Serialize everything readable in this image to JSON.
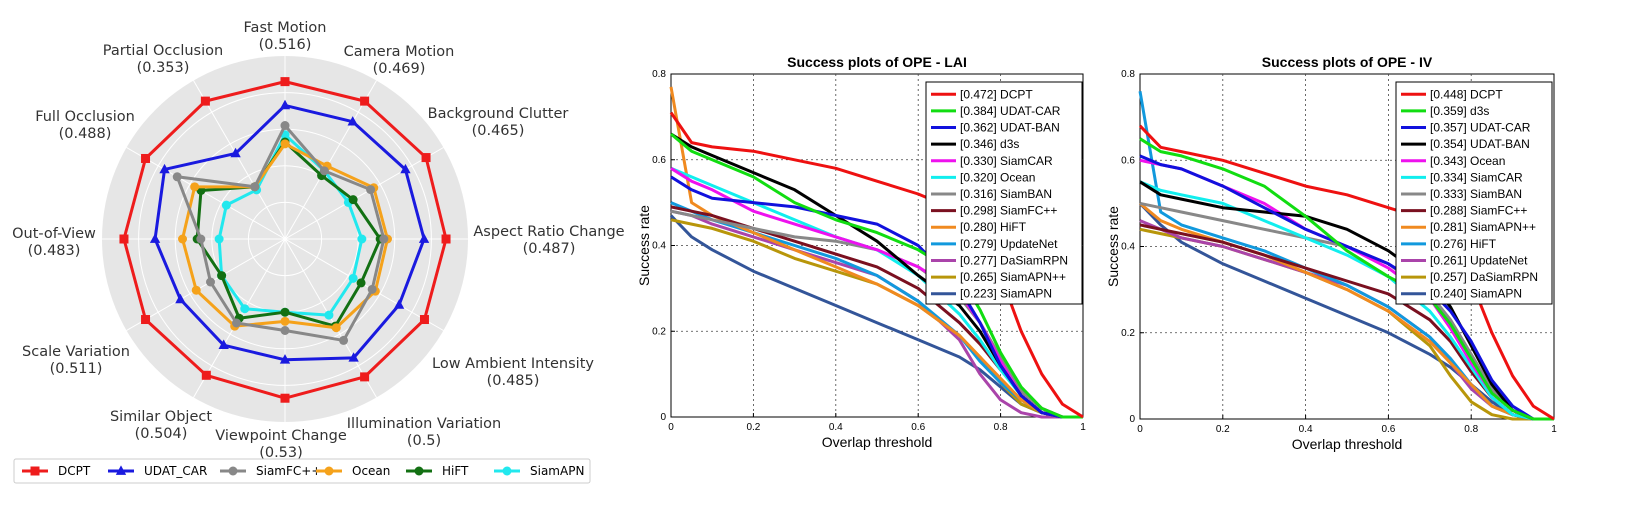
{
  "chart_data": [
    {
      "type": "radar",
      "attributes": [
        {
          "name": "Fast Motion",
          "value": "(0.516)"
        },
        {
          "name": "Camera Motion",
          "value": "(0.469)"
        },
        {
          "name": "Background Clutter",
          "value": "(0.465)"
        },
        {
          "name": "Aspect Ratio Change",
          "value": "(0.487)"
        },
        {
          "name": "Low Ambient Intensity",
          "value": "(0.485)"
        },
        {
          "name": "Illumination Variation",
          "value": "(0.5)"
        },
        {
          "name": "Viewpoint Change",
          "value": "(0.53)"
        },
        {
          "name": "Similar Object",
          "value": "(0.504)"
        },
        {
          "name": "Scale Variation",
          "value": "(0.511)"
        },
        {
          "name": "Out-of-View",
          "value": "(0.483)"
        },
        {
          "name": "Full Occlusion",
          "value": "(0.488)"
        },
        {
          "name": "Partial Occlusion",
          "value": "(0.353)"
        }
      ],
      "series": [
        {
          "name": "DCPT",
          "color": "#ee1c1c",
          "marker": "square",
          "values": [
            0.86,
            0.87,
            0.89,
            0.88,
            0.88,
            0.87,
            0.87,
            0.86,
            0.88,
            0.88,
            0.88,
            0.87
          ]
        },
        {
          "name": "UDAT_CAR",
          "color": "#1a1adf",
          "marker": "triangle",
          "values": [
            0.73,
            0.74,
            0.76,
            0.76,
            0.72,
            0.75,
            0.66,
            0.67,
            0.66,
            0.71,
            0.76,
            0.54
          ]
        },
        {
          "name": "SiamFC++",
          "color": "#888888",
          "marker": "circle",
          "values": [
            0.62,
            0.43,
            0.54,
            0.54,
            0.55,
            0.64,
            0.5,
            0.53,
            0.47,
            0.46,
            0.68,
            0.33
          ]
        },
        {
          "name": "Ocean",
          "color": "#f5a21b",
          "marker": "circle",
          "values": [
            0.52,
            0.46,
            0.56,
            0.56,
            0.57,
            0.56,
            0.45,
            0.55,
            0.56,
            0.56,
            0.57,
            0.33
          ]
        },
        {
          "name": "HiFT",
          "color": "#137013",
          "marker": "circle",
          "values": [
            0.53,
            0.4,
            0.43,
            0.52,
            0.48,
            0.55,
            0.4,
            0.5,
            0.4,
            0.48,
            0.53,
            0.33
          ]
        },
        {
          "name": "SiamAPN",
          "color": "#22e8ee",
          "marker": "circle",
          "values": [
            0.57,
            0.43,
            0.4,
            0.42,
            0.43,
            0.48,
            0.4,
            0.44,
            0.4,
            0.36,
            0.37,
            0.31
          ]
        }
      ]
    },
    {
      "type": "line",
      "title": "Success plots of OPE - LAI",
      "xlabel": "Overlap threshold",
      "ylabel": "Success rate",
      "xlim": [
        0,
        1
      ],
      "ylim": [
        0,
        0.8
      ],
      "xticks": [
        "0",
        "0.2",
        "0.4",
        "0.6",
        "0.8",
        "1"
      ],
      "yticks": [
        "0",
        "0.2",
        "0.4",
        "0.6",
        "0.8"
      ],
      "x": [
        0,
        0.05,
        0.1,
        0.2,
        0.3,
        0.4,
        0.5,
        0.6,
        0.7,
        0.75,
        0.8,
        0.85,
        0.9,
        0.95,
        1
      ],
      "series": [
        {
          "name": "DCPT",
          "legend": "[0.472] DCPT",
          "color": "#ee1111",
          "values": [
            0.71,
            0.64,
            0.63,
            0.62,
            0.6,
            0.58,
            0.55,
            0.52,
            0.48,
            0.43,
            0.33,
            0.2,
            0.1,
            0.03,
            0.0
          ]
        },
        {
          "name": "UDAT-CAR",
          "legend": "[0.384] UDAT-CAR",
          "color": "#11dd11",
          "values": [
            0.66,
            0.62,
            0.6,
            0.56,
            0.5,
            0.46,
            0.43,
            0.39,
            0.33,
            0.25,
            0.15,
            0.07,
            0.02,
            0.0,
            0.0
          ]
        },
        {
          "name": "UDAT-BAN",
          "legend": "[0.362] UDAT-BAN",
          "color": "#1111dd",
          "values": [
            0.56,
            0.53,
            0.51,
            0.5,
            0.49,
            0.47,
            0.45,
            0.4,
            0.3,
            0.22,
            0.12,
            0.05,
            0.01,
            0.0,
            0.0
          ]
        },
        {
          "name": "d3s",
          "legend": "[0.346] d3s",
          "color": "#000000",
          "values": [
            0.66,
            0.63,
            0.61,
            0.57,
            0.53,
            0.47,
            0.41,
            0.33,
            0.26,
            0.2,
            0.12,
            0.05,
            0.01,
            0.0,
            0.0
          ]
        },
        {
          "name": "SiamCAR",
          "legend": "[0.330] SiamCAR",
          "color": "#ee11ee",
          "values": [
            0.58,
            0.55,
            0.53,
            0.48,
            0.45,
            0.42,
            0.39,
            0.35,
            0.29,
            0.22,
            0.13,
            0.05,
            0.01,
            0.0,
            0.0
          ]
        },
        {
          "name": "Ocean",
          "legend": "[0.320] Ocean",
          "color": "#11eeee",
          "values": [
            0.58,
            0.56,
            0.54,
            0.5,
            0.46,
            0.42,
            0.39,
            0.33,
            0.24,
            0.18,
            0.11,
            0.05,
            0.01,
            0.0,
            0.0
          ]
        },
        {
          "name": "SiamBAN",
          "legend": "[0.316] SiamBAN",
          "color": "#888888",
          "values": [
            0.48,
            0.47,
            0.46,
            0.44,
            0.42,
            0.41,
            0.39,
            0.35,
            0.28,
            0.22,
            0.14,
            0.06,
            0.02,
            0.0,
            0.0
          ]
        },
        {
          "name": "SiamFC++",
          "legend": "[0.298] SiamFC++",
          "color": "#7a1020",
          "values": [
            0.49,
            0.48,
            0.47,
            0.44,
            0.41,
            0.38,
            0.35,
            0.3,
            0.22,
            0.17,
            0.11,
            0.06,
            0.02,
            0.0,
            0.0
          ]
        },
        {
          "name": "HiFT",
          "legend": "[0.280] HiFT",
          "color": "#f08a20",
          "values": [
            0.77,
            0.5,
            0.47,
            0.43,
            0.39,
            0.35,
            0.31,
            0.26,
            0.19,
            0.14,
            0.09,
            0.04,
            0.01,
            0.0,
            0.0
          ]
        },
        {
          "name": "UpdateNet",
          "legend": "[0.279] UpdateNet",
          "color": "#1199dd",
          "values": [
            0.5,
            0.48,
            0.46,
            0.43,
            0.4,
            0.37,
            0.33,
            0.27,
            0.19,
            0.13,
            0.08,
            0.04,
            0.01,
            0.0,
            0.0
          ]
        },
        {
          "name": "DaSiamRPN",
          "legend": "[0.277] DaSiamRPN",
          "color": "#aa44aa",
          "values": [
            0.48,
            0.47,
            0.45,
            0.42,
            0.39,
            0.36,
            0.33,
            0.27,
            0.18,
            0.1,
            0.04,
            0.01,
            0.0,
            0.0,
            0.0
          ]
        },
        {
          "name": "SiamAPN++",
          "legend": "[0.265] SiamAPN++",
          "color": "#b8960a",
          "values": [
            0.46,
            0.45,
            0.44,
            0.41,
            0.37,
            0.34,
            0.31,
            0.26,
            0.19,
            0.14,
            0.08,
            0.03,
            0.01,
            0.0,
            0.0
          ]
        },
        {
          "name": "SiamAPN",
          "legend": "[0.223] SiamAPN",
          "color": "#335599",
          "values": [
            0.47,
            0.42,
            0.39,
            0.34,
            0.3,
            0.26,
            0.22,
            0.18,
            0.14,
            0.11,
            0.07,
            0.03,
            0.01,
            0.0,
            0.0
          ]
        }
      ]
    },
    {
      "type": "line",
      "title": "Success plots of OPE - IV",
      "xlabel": "Overlap threshold",
      "ylabel": "Success rate",
      "xlim": [
        0,
        1
      ],
      "ylim": [
        0,
        0.8
      ],
      "xticks": [
        "0",
        "0.2",
        "0.4",
        "0.6",
        "0.8",
        "1"
      ],
      "yticks": [
        "0",
        "0.2",
        "0.4",
        "0.6",
        "0.8"
      ],
      "x": [
        0,
        0.05,
        0.1,
        0.2,
        0.3,
        0.4,
        0.5,
        0.6,
        0.7,
        0.75,
        0.8,
        0.85,
        0.9,
        0.95,
        1
      ],
      "series": [
        {
          "name": "DCPT",
          "legend": "[0.448] DCPT",
          "color": "#ee1111",
          "values": [
            0.68,
            0.63,
            0.62,
            0.6,
            0.57,
            0.54,
            0.52,
            0.49,
            0.46,
            0.42,
            0.32,
            0.2,
            0.1,
            0.03,
            0.0
          ]
        },
        {
          "name": "d3s",
          "legend": "[0.359] d3s",
          "color": "#11dd11",
          "values": [
            0.65,
            0.62,
            0.61,
            0.58,
            0.54,
            0.47,
            0.39,
            0.33,
            0.28,
            0.22,
            0.14,
            0.06,
            0.02,
            0.0,
            0.0
          ]
        },
        {
          "name": "UDAT-CAR",
          "legend": "[0.357] UDAT-CAR",
          "color": "#1111dd",
          "values": [
            0.61,
            0.59,
            0.58,
            0.54,
            0.49,
            0.44,
            0.4,
            0.36,
            0.3,
            0.25,
            0.18,
            0.09,
            0.03,
            0.0,
            0.0
          ]
        },
        {
          "name": "UDAT-BAN",
          "legend": "[0.354] UDAT-BAN",
          "color": "#000000",
          "values": [
            0.55,
            0.52,
            0.51,
            0.49,
            0.48,
            0.47,
            0.44,
            0.39,
            0.32,
            0.26,
            0.17,
            0.08,
            0.02,
            0.0,
            0.0
          ]
        },
        {
          "name": "Ocean",
          "legend": "[0.343] Ocean",
          "color": "#ee11ee",
          "values": [
            0.6,
            0.59,
            0.58,
            0.54,
            0.5,
            0.44,
            0.4,
            0.35,
            0.28,
            0.21,
            0.13,
            0.06,
            0.02,
            0.0,
            0.0
          ]
        },
        {
          "name": "SiamCAR",
          "legend": "[0.334] SiamCAR",
          "color": "#11eeee",
          "values": [
            0.55,
            0.53,
            0.52,
            0.5,
            0.46,
            0.42,
            0.38,
            0.33,
            0.25,
            0.19,
            0.12,
            0.05,
            0.01,
            0.0,
            0.0
          ]
        },
        {
          "name": "SiamBAN",
          "legend": "[0.333] SiamBAN",
          "color": "#888888",
          "values": [
            0.5,
            0.49,
            0.48,
            0.46,
            0.44,
            0.42,
            0.4,
            0.36,
            0.29,
            0.23,
            0.15,
            0.07,
            0.02,
            0.0,
            0.0
          ]
        },
        {
          "name": "SiamFC++",
          "legend": "[0.288] SiamFC++",
          "color": "#7a1020",
          "values": [
            0.45,
            0.44,
            0.43,
            0.41,
            0.38,
            0.35,
            0.32,
            0.29,
            0.23,
            0.18,
            0.11,
            0.05,
            0.01,
            0.0,
            0.0
          ]
        },
        {
          "name": "SiamAPN++",
          "legend": "[0.281] SiamAPN++",
          "color": "#f08a20",
          "values": [
            0.5,
            0.46,
            0.44,
            0.41,
            0.38,
            0.34,
            0.3,
            0.25,
            0.18,
            0.13,
            0.08,
            0.03,
            0.01,
            0.0,
            0.0
          ]
        },
        {
          "name": "HiFT",
          "legend": "[0.276] HiFT",
          "color": "#1199dd",
          "values": [
            0.76,
            0.48,
            0.45,
            0.42,
            0.39,
            0.35,
            0.31,
            0.26,
            0.19,
            0.14,
            0.08,
            0.03,
            0.01,
            0.0,
            0.0
          ]
        },
        {
          "name": "UpdateNet",
          "legend": "[0.261] UpdateNet",
          "color": "#aa44aa",
          "values": [
            0.46,
            0.44,
            0.42,
            0.4,
            0.37,
            0.34,
            0.31,
            0.26,
            0.19,
            0.13,
            0.07,
            0.03,
            0.01,
            0.0,
            0.0
          ]
        },
        {
          "name": "DaSiamRPN",
          "legend": "[0.257] DaSiamRPN",
          "color": "#b8960a",
          "values": [
            0.44,
            0.43,
            0.42,
            0.4,
            0.37,
            0.34,
            0.3,
            0.25,
            0.17,
            0.1,
            0.04,
            0.01,
            0.0,
            0.0,
            0.0
          ]
        },
        {
          "name": "SiamAPN",
          "legend": "[0.240] SiamAPN",
          "color": "#335599",
          "values": [
            0.5,
            0.45,
            0.41,
            0.36,
            0.32,
            0.28,
            0.24,
            0.2,
            0.15,
            0.12,
            0.08,
            0.04,
            0.01,
            0.0,
            0.0
          ]
        }
      ]
    }
  ]
}
